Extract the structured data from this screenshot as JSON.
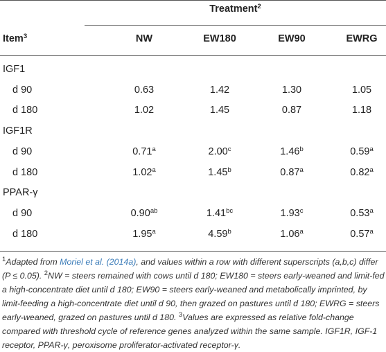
{
  "header": {
    "treatment_label": "Treatment",
    "treatment_sup": "2",
    "item_label": "Item",
    "item_sup": "3",
    "columns": [
      "NW",
      "EW180",
      "EW90",
      "EWRG"
    ]
  },
  "groups": [
    {
      "name": "IGF1",
      "rows": [
        {
          "label": "d 90",
          "cells": [
            {
              "v": "0.63",
              "s": ""
            },
            {
              "v": "1.42",
              "s": ""
            },
            {
              "v": "1.30",
              "s": ""
            },
            {
              "v": "1.05",
              "s": ""
            }
          ]
        },
        {
          "label": "d 180",
          "cells": [
            {
              "v": "1.02",
              "s": ""
            },
            {
              "v": "1.45",
              "s": ""
            },
            {
              "v": "0.87",
              "s": ""
            },
            {
              "v": "1.18",
              "s": ""
            }
          ]
        }
      ]
    },
    {
      "name": "IGF1R",
      "rows": [
        {
          "label": "d 90",
          "cells": [
            {
              "v": "0.71",
              "s": "a"
            },
            {
              "v": "2.00",
              "s": "c"
            },
            {
              "v": "1.46",
              "s": "b"
            },
            {
              "v": "0.59",
              "s": "a"
            }
          ]
        },
        {
          "label": "d 180",
          "cells": [
            {
              "v": "1.02",
              "s": "a"
            },
            {
              "v": "1.45",
              "s": "b"
            },
            {
              "v": "0.87",
              "s": "a"
            },
            {
              "v": "0.82",
              "s": "a"
            }
          ]
        }
      ]
    },
    {
      "name": "PPAR-γ",
      "rows": [
        {
          "label": "d 90",
          "cells": [
            {
              "v": "0.90",
              "s": "ab"
            },
            {
              "v": "1.41",
              "s": "bc"
            },
            {
              "v": "1.93",
              "s": "c"
            },
            {
              "v": "0.53",
              "s": "a"
            }
          ]
        },
        {
          "label": "d 180",
          "cells": [
            {
              "v": "1.95",
              "s": "a"
            },
            {
              "v": "4.59",
              "s": "b"
            },
            {
              "v": "1.06",
              "s": "a"
            },
            {
              "v": "0.57",
              "s": "a"
            }
          ]
        }
      ]
    }
  ],
  "footnote": {
    "n1_sup": "1",
    "n1_a": "Adapted from ",
    "n1_link": "Moriel et al. (2014a)",
    "n1_b": ", and values within a row with different superscripts (a,b,c) differ (P ≤ 0.05). ",
    "n2_sup": "2",
    "n2": "NW = steers remained with cows until d 180; EW180 = steers early-weaned and limit-fed a high-concentrate diet until d 180; EW90 = steers early-weaned and metabolically imprinted, by limit-feeding a high-concentrate diet until d 90, then grazed on pastures until d 180; EWRG = steers early-weaned, grazed on pastures until d 180. ",
    "n3_sup": "3",
    "n3": "Values are expressed as relative fold-change compared with threshold cycle of reference genes analyzed within the same sample. IGF1R, IGF-1 receptor, PPAR-γ, peroxisome proliferator-activated receptor-γ."
  }
}
